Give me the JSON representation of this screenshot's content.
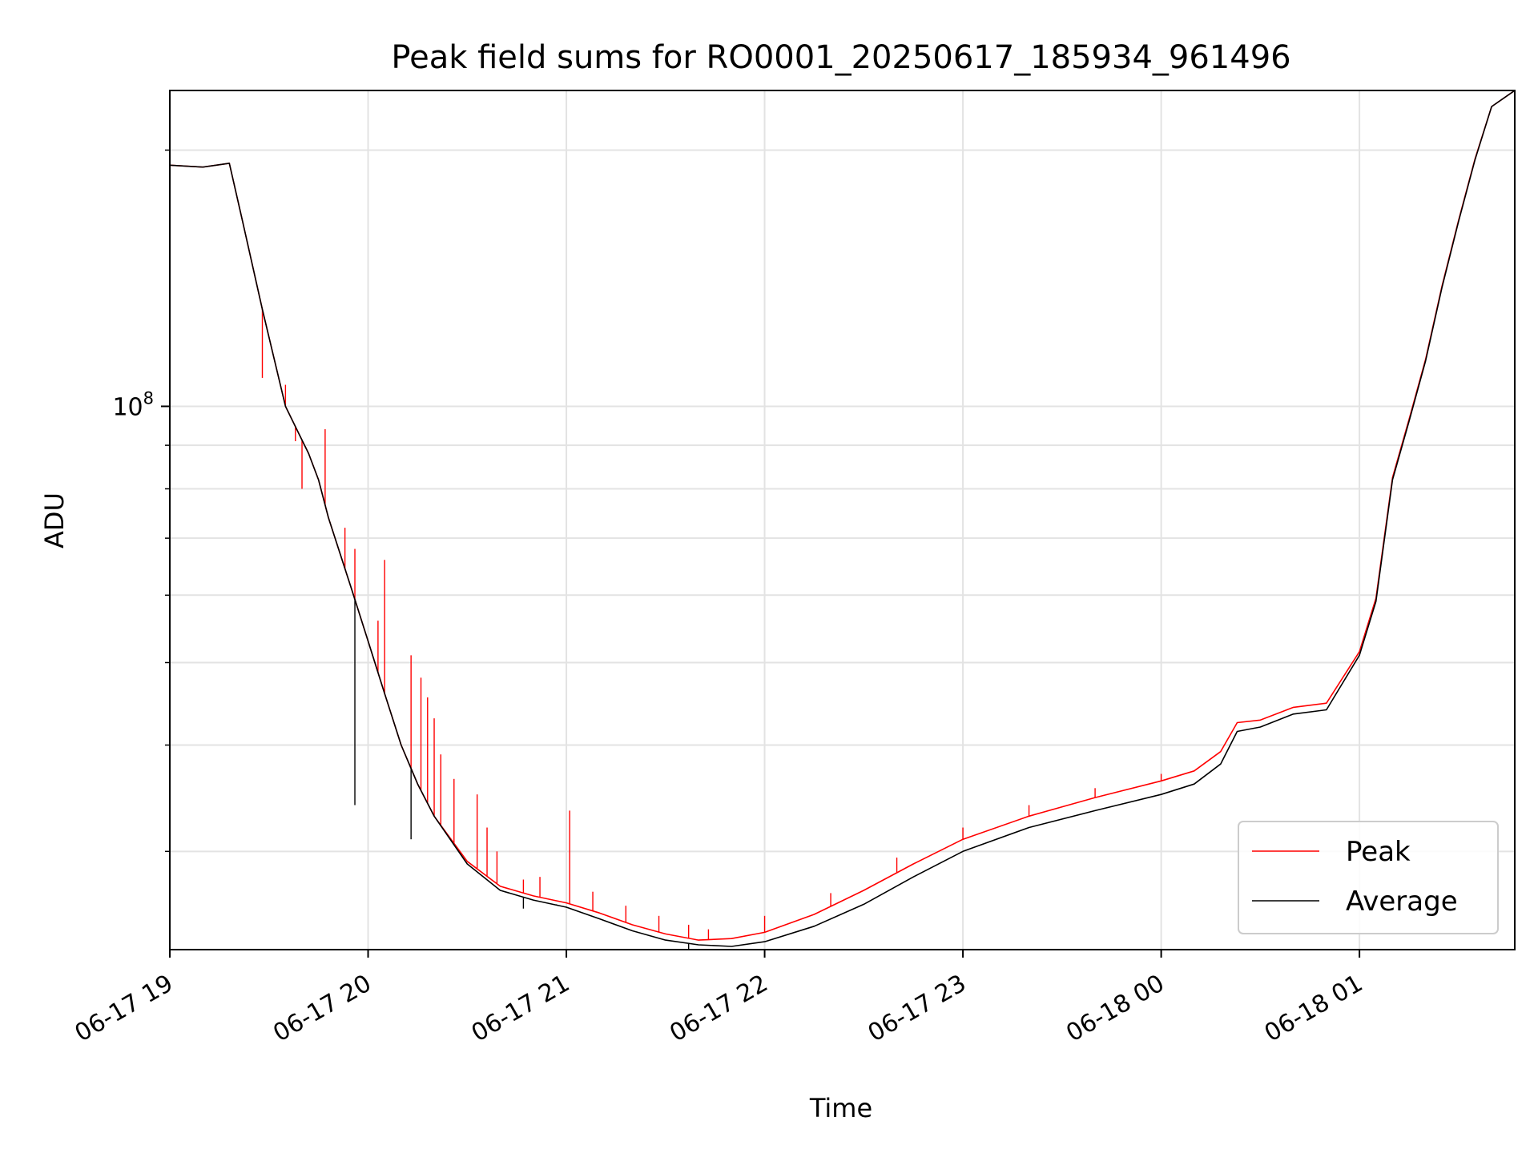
{
  "chart_data": {
    "type": "line",
    "title": "Peak field sums for RO0001_20250617_185934_961496",
    "xlabel": "Time",
    "ylabel": "ADU",
    "yscale": "log",
    "grid": true,
    "legend_position": "lower-right",
    "x_ticks": [
      "06-17 19",
      "06-17 20",
      "06-17 21",
      "06-17 22",
      "06-17 23",
      "06-18 00",
      "06-18 01"
    ],
    "y_tick_major_label": "10^8",
    "x_range": [
      "06-17 19:00",
      "06-18 01:47"
    ],
    "ylim": [
      23000000,
      235000000
    ],
    "series": [
      {
        "name": "Average",
        "color": "#000000",
        "points": [
          [
            "06-17 19:00",
            192000000
          ],
          [
            "06-17 19:10",
            191000000
          ],
          [
            "06-17 19:18",
            193000000
          ],
          [
            "06-17 19:22",
            165000000
          ],
          [
            "06-17 19:28",
            130000000
          ],
          [
            "06-17 19:35",
            100000000
          ],
          [
            "06-17 19:42",
            88000000
          ],
          [
            "06-17 19:45",
            82000000
          ],
          [
            "06-17 19:48",
            74000000
          ],
          [
            "06-17 19:55",
            61000000
          ],
          [
            "06-17 20:00",
            53000000
          ],
          [
            "06-17 20:05",
            46000000
          ],
          [
            "06-17 20:10",
            40000000
          ],
          [
            "06-17 20:15",
            36000000
          ],
          [
            "06-17 20:20",
            33000000
          ],
          [
            "06-17 20:30",
            29000000
          ],
          [
            "06-17 20:40",
            27000000
          ],
          [
            "06-17 20:50",
            26300000
          ],
          [
            "06-17 21:00",
            25800000
          ],
          [
            "06-17 21:10",
            25000000
          ],
          [
            "06-17 21:20",
            24200000
          ],
          [
            "06-17 21:30",
            23600000
          ],
          [
            "06-17 21:40",
            23300000
          ],
          [
            "06-17 21:50",
            23200000
          ],
          [
            "06-17 22:00",
            23500000
          ],
          [
            "06-17 22:15",
            24500000
          ],
          [
            "06-17 22:30",
            26000000
          ],
          [
            "06-17 22:45",
            28000000
          ],
          [
            "06-17 23:00",
            30000000
          ],
          [
            "06-17 23:20",
            32000000
          ],
          [
            "06-17 23:40",
            33500000
          ],
          [
            "06-18 00:00",
            35000000
          ],
          [
            "06-18 00:10",
            36000000
          ],
          [
            "06-18 00:18",
            38000000
          ],
          [
            "06-18 00:23",
            41500000
          ],
          [
            "06-18 00:30",
            42000000
          ],
          [
            "06-18 00:40",
            43500000
          ],
          [
            "06-18 00:50",
            44000000
          ],
          [
            "06-18 01:00",
            51000000
          ],
          [
            "06-18 01:05",
            59000000
          ],
          [
            "06-18 01:10",
            82000000
          ],
          [
            "06-18 01:15",
            96000000
          ],
          [
            "06-18 01:20",
            113000000
          ],
          [
            "06-18 01:25",
            138000000
          ],
          [
            "06-18 01:30",
            165000000
          ],
          [
            "06-18 01:35",
            195000000
          ],
          [
            "06-18 01:40",
            225000000
          ],
          [
            "06-18 01:47",
            235000000
          ]
        ],
        "spikes": [
          [
            "06-17 21:37",
            22800000
          ],
          [
            "06-17 20:47",
            25700000
          ],
          [
            "06-17 20:57",
            26000000
          ],
          [
            "06-17 20:13",
            31000000
          ],
          [
            "06-17 19:56",
            34000000
          ]
        ]
      },
      {
        "name": "Peak",
        "color": "#ff0000",
        "points": [
          [
            "06-17 19:00",
            192000000
          ],
          [
            "06-17 19:10",
            191000000
          ],
          [
            "06-17 19:18",
            193000000
          ],
          [
            "06-17 19:22",
            165000000
          ],
          [
            "06-17 19:28",
            130000000
          ],
          [
            "06-17 19:35",
            100000000
          ],
          [
            "06-17 19:42",
            88000000
          ],
          [
            "06-17 19:45",
            82000000
          ],
          [
            "06-17 19:48",
            74000000
          ],
          [
            "06-17 19:55",
            61000000
          ],
          [
            "06-17 20:00",
            53000000
          ],
          [
            "06-17 20:05",
            46000000
          ],
          [
            "06-17 20:10",
            40000000
          ],
          [
            "06-17 20:15",
            36000000
          ],
          [
            "06-17 20:20",
            33000000
          ],
          [
            "06-17 20:30",
            29200000
          ],
          [
            "06-17 20:40",
            27300000
          ],
          [
            "06-17 20:50",
            26600000
          ],
          [
            "06-17 21:00",
            26100000
          ],
          [
            "06-17 21:10",
            25400000
          ],
          [
            "06-17 21:20",
            24600000
          ],
          [
            "06-17 21:30",
            24000000
          ],
          [
            "06-17 21:40",
            23600000
          ],
          [
            "06-17 21:50",
            23700000
          ],
          [
            "06-17 22:00",
            24100000
          ],
          [
            "06-17 22:15",
            25300000
          ],
          [
            "06-17 22:30",
            27000000
          ],
          [
            "06-17 22:45",
            29000000
          ],
          [
            "06-17 23:00",
            31000000
          ],
          [
            "06-17 23:20",
            33000000
          ],
          [
            "06-17 23:40",
            34700000
          ],
          [
            "06-18 00:00",
            36300000
          ],
          [
            "06-18 00:10",
            37300000
          ],
          [
            "06-18 00:18",
            39300000
          ],
          [
            "06-18 00:23",
            42500000
          ],
          [
            "06-18 00:30",
            42800000
          ],
          [
            "06-18 00:40",
            44300000
          ],
          [
            "06-18 00:50",
            44800000
          ],
          [
            "06-18 01:00",
            51500000
          ],
          [
            "06-18 01:05",
            59500000
          ],
          [
            "06-18 01:10",
            82500000
          ],
          [
            "06-18 01:15",
            96500000
          ],
          [
            "06-18 01:20",
            113500000
          ],
          [
            "06-18 01:25",
            138500000
          ],
          [
            "06-18 01:30",
            165500000
          ],
          [
            "06-18 01:35",
            195500000
          ],
          [
            "06-18 01:40",
            225000000
          ],
          [
            "06-18 01:47",
            235000000
          ]
        ],
        "spikes": [
          [
            "06-17 19:28",
            108000000
          ],
          [
            "06-17 19:35",
            106000000
          ],
          [
            "06-17 19:38",
            91000000
          ],
          [
            "06-17 19:40",
            80000000
          ],
          [
            "06-17 19:47",
            94000000
          ],
          [
            "06-17 19:53",
            72000000
          ],
          [
            "06-17 19:56",
            68000000
          ],
          [
            "06-17 20:03",
            56000000
          ],
          [
            "06-17 20:05",
            66000000
          ],
          [
            "06-17 20:13",
            51000000
          ],
          [
            "06-17 20:16",
            48000000
          ],
          [
            "06-17 20:18",
            45500000
          ],
          [
            "06-17 20:20",
            43000000
          ],
          [
            "06-17 20:22",
            39000000
          ],
          [
            "06-17 20:26",
            36500000
          ],
          [
            "06-17 20:33",
            35000000
          ],
          [
            "06-17 20:36",
            32000000
          ],
          [
            "06-17 20:39",
            30000000
          ],
          [
            "06-17 20:47",
            27800000
          ],
          [
            "06-17 20:52",
            28000000
          ],
          [
            "06-17 21:01",
            33500000
          ],
          [
            "06-17 21:08",
            26900000
          ],
          [
            "06-17 21:18",
            25900000
          ],
          [
            "06-17 21:28",
            25200000
          ],
          [
            "06-17 21:37",
            24600000
          ],
          [
            "06-17 21:43",
            24300000
          ],
          [
            "06-17 22:00",
            25200000
          ],
          [
            "06-17 22:20",
            26800000
          ],
          [
            "06-17 22:40",
            29500000
          ],
          [
            "06-17 23:00",
            32000000
          ],
          [
            "06-17 23:20",
            34000000
          ],
          [
            "06-17 23:40",
            35600000
          ],
          [
            "06-18 00:00",
            37000000
          ]
        ]
      }
    ]
  }
}
